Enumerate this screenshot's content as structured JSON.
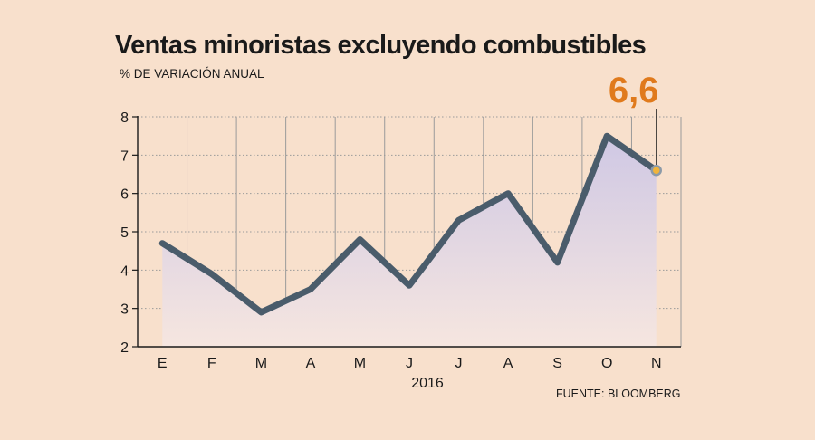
{
  "title": "Ventas minoristas excluyendo combustibles",
  "subtitle": "% DE VARIACIÓN ANUAL",
  "source": "FUENTE: BLOOMBERG",
  "chart_data": {
    "type": "area",
    "title": "Ventas minoristas excluyendo combustibles",
    "ylabel": "% DE VARIACIÓN ANUAL",
    "xlabel": "2016",
    "categories": [
      "E",
      "F",
      "M",
      "A",
      "M",
      "J",
      "J",
      "A",
      "S",
      "O",
      "N"
    ],
    "values": [
      4.7,
      3.9,
      2.9,
      3.5,
      4.8,
      3.6,
      5.3,
      6.0,
      4.2,
      7.5,
      6.6
    ],
    "ylim": [
      2,
      8
    ],
    "yticks": [
      "2",
      "3",
      "4",
      "5",
      "6",
      "7",
      "8"
    ],
    "grid": true,
    "highlight": {
      "label": "6,6",
      "index": 10
    },
    "colors": {
      "line": "#4a5c6b",
      "fill_top": "#cfc8e4",
      "fill_bottom": "#f6e6e0",
      "grid": "#9a9a9a",
      "highlight": "#e07a1c",
      "marker": "#f0b43c"
    }
  }
}
